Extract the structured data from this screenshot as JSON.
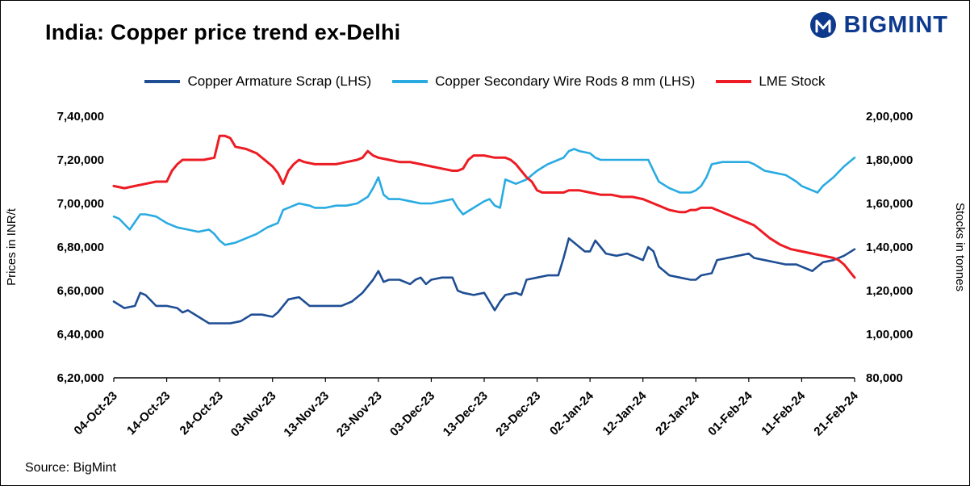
{
  "page": {
    "title": "India: Copper price trend ex-Delhi",
    "source": "Source: BigMint",
    "brand": {
      "name": "BIGMINT",
      "color": "#0E3A8E"
    }
  },
  "chart_data": {
    "type": "line",
    "title": "India: Copper price trend ex-Delhi",
    "grid": false,
    "legend_position": "top",
    "x_axis": {
      "range": [
        0,
        140
      ],
      "tick_positions": [
        0,
        10,
        20,
        30,
        40,
        50,
        60,
        70,
        80,
        90,
        100,
        110,
        120,
        130,
        140
      ],
      "tick_labels": [
        "04-Oct-23",
        "14-Oct-23",
        "24-Oct-23",
        "03-Nov-23",
        "13-Nov-23",
        "23-Nov-23",
        "03-Dec-23",
        "13-Dec-23",
        "23-Dec-23",
        "02-Jan-24",
        "12-Jan-24",
        "22-Jan-24",
        "01-Feb-24",
        "11-Feb-24",
        "21-Feb-24"
      ]
    },
    "left_axis": {
      "title": "Prices in INR/t",
      "range": [
        620000,
        740000
      ],
      "tick_labels": [
        "6,20,000",
        "6,40,000",
        "6,60,000",
        "6,80,000",
        "7,00,000",
        "7,20,000",
        "7,40,000"
      ]
    },
    "right_axis": {
      "title": "Stocks in tonnes",
      "range": [
        80000,
        200000
      ],
      "tick_labels": [
        "80,000",
        "1,00,000",
        "1,20,000",
        "1,40,000",
        "1,60,000",
        "1,80,000",
        "2,00,000"
      ]
    },
    "series": [
      {
        "name": "Copper Armature Scrap (LHS)",
        "axis": "left",
        "color": "#1F4E94",
        "width": 2.6,
        "x": [
          0,
          2,
          4,
          5,
          6,
          8,
          10,
          12,
          13,
          14,
          16,
          18,
          20,
          22,
          24,
          26,
          28,
          30,
          31,
          33,
          35,
          37,
          40,
          43,
          45,
          47,
          49,
          50,
          51,
          52,
          54,
          56,
          57,
          58,
          59,
          60,
          62,
          64,
          65,
          66,
          68,
          70,
          71,
          72,
          73,
          74,
          76,
          77,
          78,
          80,
          82,
          84,
          85,
          86,
          87,
          88,
          89,
          90,
          91,
          92,
          93,
          95,
          97,
          99,
          100,
          101,
          102,
          103,
          105,
          107,
          109,
          110,
          111,
          113,
          114,
          116,
          118,
          120,
          121,
          123,
          125,
          127,
          129,
          130,
          131,
          132,
          134,
          136,
          138,
          140
        ],
        "values": [
          655000,
          652000,
          653000,
          659000,
          658000,
          653000,
          653000,
          652000,
          650000,
          651000,
          648000,
          645000,
          645000,
          645000,
          646000,
          649000,
          649000,
          648000,
          650000,
          656000,
          657000,
          653000,
          653000,
          653000,
          655000,
          659000,
          665000,
          669000,
          664000,
          665000,
          665000,
          663000,
          665000,
          666000,
          663000,
          665000,
          666000,
          666000,
          660000,
          659000,
          658000,
          659000,
          655000,
          651000,
          655000,
          658000,
          659000,
          658000,
          665000,
          666000,
          667000,
          667000,
          675000,
          684000,
          682000,
          680000,
          678000,
          678000,
          683000,
          680000,
          677000,
          676000,
          677000,
          675000,
          674000,
          680000,
          678000,
          671000,
          667000,
          666000,
          665000,
          665000,
          667000,
          668000,
          674000,
          675000,
          676000,
          677000,
          675000,
          674000,
          673000,
          672000,
          672000,
          671000,
          670000,
          669000,
          673000,
          674000,
          676000,
          679000
        ]
      },
      {
        "name": "Copper Secondary Wire Rods 8 mm (LHS)",
        "axis": "left",
        "color": "#29ABE2",
        "width": 2.6,
        "x": [
          0,
          1,
          3,
          5,
          6,
          8,
          10,
          12,
          14,
          16,
          18,
          19,
          20,
          21,
          23,
          25,
          27,
          29,
          30,
          31,
          32,
          34,
          35,
          37,
          38,
          40,
          42,
          44,
          46,
          48,
          49,
          50,
          51,
          52,
          54,
          56,
          58,
          60,
          62,
          64,
          65,
          66,
          68,
          70,
          71,
          72,
          73,
          74,
          75,
          76,
          78,
          79,
          80,
          82,
          84,
          85,
          86,
          87,
          88,
          90,
          91,
          92,
          95,
          98,
          100,
          101,
          102,
          103,
          105,
          107,
          109,
          110,
          111,
          112,
          113,
          115,
          118,
          120,
          121,
          123,
          125,
          127,
          129,
          130,
          132,
          133,
          134,
          136,
          138,
          140
        ],
        "values": [
          694000,
          693000,
          688000,
          695000,
          695000,
          694000,
          691000,
          689000,
          688000,
          687000,
          688000,
          686000,
          683000,
          681000,
          682000,
          684000,
          686000,
          689000,
          690000,
          691000,
          697000,
          699000,
          700000,
          699000,
          698000,
          698000,
          699000,
          699000,
          700000,
          703000,
          707000,
          712000,
          704000,
          702000,
          702000,
          701000,
          700000,
          700000,
          701000,
          702000,
          698000,
          695000,
          698000,
          701000,
          702000,
          699000,
          698000,
          711000,
          710000,
          709000,
          711000,
          713000,
          715000,
          718000,
          720000,
          721000,
          724000,
          725000,
          724000,
          723000,
          721000,
          720000,
          720000,
          720000,
          720000,
          720000,
          715000,
          710000,
          707000,
          705000,
          705000,
          706000,
          708000,
          712000,
          718000,
          719000,
          719000,
          719000,
          718000,
          715000,
          714000,
          713000,
          710000,
          708000,
          706000,
          705000,
          708000,
          712000,
          717000,
          721000
        ]
      },
      {
        "name": "LME Stock",
        "axis": "right",
        "color": "#ED1C24",
        "width": 3,
        "x": [
          0,
          2,
          4,
          6,
          8,
          10,
          11,
          12,
          13,
          15,
          17,
          19,
          20,
          21,
          22,
          23,
          25,
          27,
          29,
          30,
          31,
          32,
          33,
          34,
          35,
          36,
          38,
          40,
          42,
          44,
          46,
          47,
          48,
          49,
          50,
          52,
          54,
          56,
          58,
          60,
          62,
          64,
          65,
          66,
          67,
          68,
          70,
          72,
          74,
          75,
          76,
          77,
          78,
          79,
          80,
          81,
          83,
          85,
          86,
          88,
          90,
          92,
          94,
          96,
          98,
          100,
          102,
          104,
          105,
          107,
          108,
          109,
          110,
          111,
          113,
          115,
          117,
          119,
          120,
          121,
          122,
          124,
          126,
          128,
          130,
          132,
          134,
          136,
          137,
          138,
          139,
          140
        ],
        "values": [
          168000,
          167000,
          168000,
          169000,
          170000,
          170000,
          175000,
          178000,
          180000,
          180000,
          180000,
          181000,
          191000,
          191000,
          190000,
          186000,
          185000,
          183000,
          179000,
          177000,
          174000,
          169000,
          175000,
          178000,
          180000,
          179000,
          178000,
          178000,
          178000,
          179000,
          180000,
          181000,
          184000,
          182000,
          181000,
          180000,
          179000,
          179000,
          178000,
          177000,
          176000,
          175000,
          175000,
          176000,
          180000,
          182000,
          182000,
          181000,
          181000,
          180000,
          178000,
          175000,
          172000,
          170000,
          166000,
          165000,
          165000,
          165000,
          166000,
          166000,
          165000,
          164000,
          164000,
          163000,
          163000,
          162000,
          160000,
          158000,
          157000,
          156000,
          156000,
          157000,
          157000,
          158000,
          158000,
          156000,
          154000,
          152000,
          151000,
          150000,
          148000,
          144000,
          141000,
          139000,
          138000,
          137000,
          136000,
          135000,
          134000,
          132000,
          129000,
          126000
        ]
      }
    ]
  }
}
